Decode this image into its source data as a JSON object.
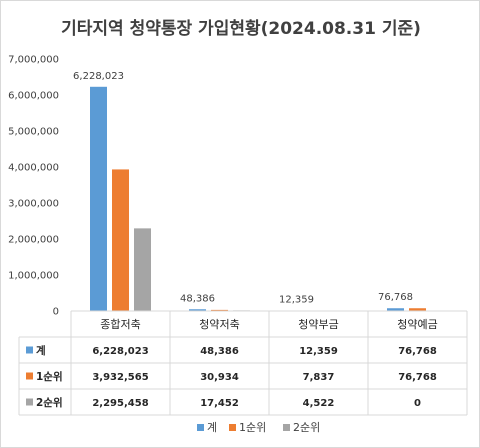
{
  "chart_data": {
    "type": "bar",
    "title": "기타지역 청약통장 가입현황(2024.08.31 기준)",
    "categories": [
      "종합저축",
      "청약저축",
      "청약부금",
      "청약예금"
    ],
    "ylim": [
      0,
      7000000
    ],
    "yticks": [
      "0",
      "1,000,000",
      "2,000,000",
      "3,000,000",
      "4,000,000",
      "5,000,000",
      "6,000,000",
      "7,000,000"
    ],
    "grid": false,
    "legend_position": "bottom",
    "data_labels_series": "계",
    "series": [
      {
        "name": "계",
        "color": "#5b9bd5",
        "values": [
          6228023,
          48386,
          12359,
          76768
        ],
        "labels": [
          "6,228,023",
          "48,386",
          "12,359",
          "76,768"
        ]
      },
      {
        "name": "1순위",
        "color": "#ed7d31",
        "values": [
          3932565,
          30934,
          7837,
          76768
        ],
        "labels": [
          "3,932,565",
          "30,934",
          "7,837",
          "76,768"
        ]
      },
      {
        "name": "2순위",
        "color": "#a5a5a5",
        "values": [
          2295458,
          17452,
          4522,
          0
        ],
        "labels": [
          "2,295,458",
          "17,452",
          "4,522",
          "0"
        ]
      }
    ]
  }
}
